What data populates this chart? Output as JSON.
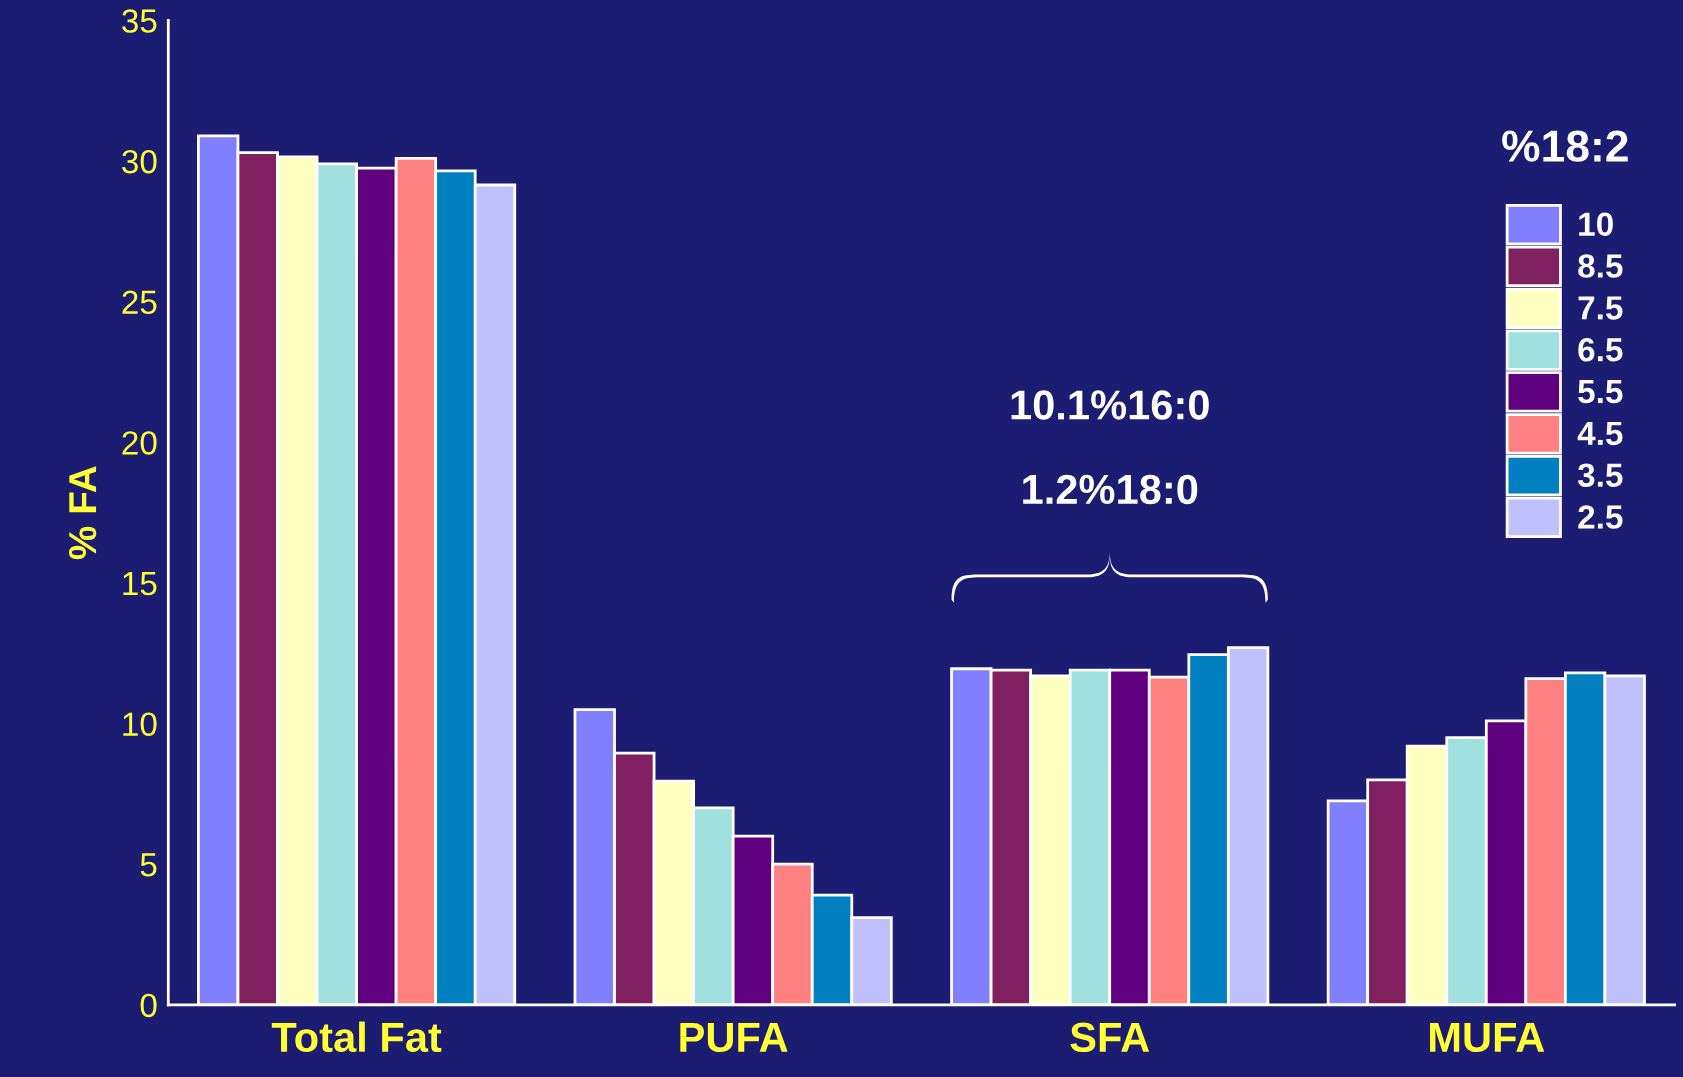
{
  "chart_data": {
    "type": "bar",
    "categories": [
      "Total Fat",
      "PUFA",
      "SFA",
      "MUFA"
    ],
    "ylabel": "% FA",
    "legend_title": "%18:2",
    "ylim": [
      0,
      35
    ],
    "yticks": [
      0,
      5,
      10,
      15,
      20,
      25,
      30,
      35
    ],
    "grid": false,
    "legend": "top right",
    "annotations": [
      "10.1%16:0",
      "1.2%18:0"
    ],
    "series": [
      {
        "name": "10",
        "color": "#8080ff",
        "values": [
          30.9,
          10.5,
          11.95,
          7.25
        ]
      },
      {
        "name": "8.5",
        "color": "#802060",
        "values": [
          30.3,
          8.95,
          11.9,
          8.0
        ]
      },
      {
        "name": "7.5",
        "color": "#ffffc0",
        "values": [
          30.15,
          7.95,
          11.7,
          9.2
        ]
      },
      {
        "name": "6.5",
        "color": "#a0e0e0",
        "values": [
          29.9,
          7.0,
          11.9,
          9.5
        ]
      },
      {
        "name": "5.5",
        "color": "#600080",
        "values": [
          29.75,
          6.0,
          11.9,
          10.1
        ]
      },
      {
        "name": "4.5",
        "color": "#ff8080",
        "values": [
          30.1,
          5.0,
          11.65,
          11.6
        ]
      },
      {
        "name": "3.5",
        "color": "#0080c0",
        "values": [
          29.65,
          3.9,
          12.45,
          11.8
        ]
      },
      {
        "name": "2.5",
        "color": "#c0c0ff",
        "values": [
          29.15,
          3.1,
          12.7,
          11.7
        ]
      }
    ]
  }
}
